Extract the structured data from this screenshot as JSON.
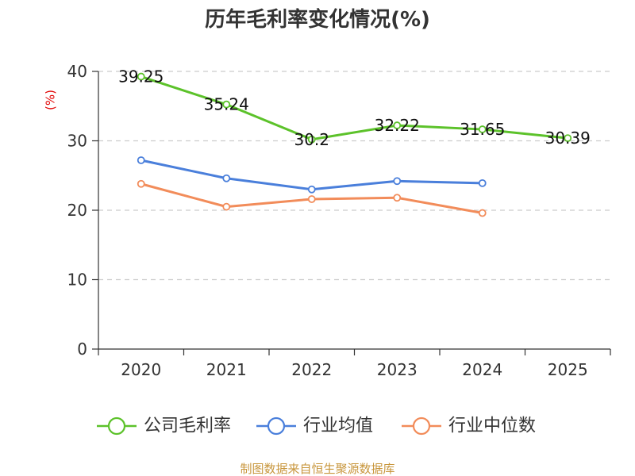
{
  "chart_data": {
    "type": "line",
    "title": "历年毛利率变化情况(%)",
    "ylabel": "(%)",
    "xlabel": "",
    "ylim": [
      0,
      40
    ],
    "yticks": [
      0,
      10,
      20,
      30,
      40
    ],
    "grid": true,
    "legend_position": "bottom",
    "categories": [
      "2020",
      "2021",
      "2022",
      "2023",
      "2024",
      "2025"
    ],
    "series": [
      {
        "name": "公司毛利率",
        "color": "#5cc22a",
        "values": [
          39.25,
          35.24,
          30.2,
          32.22,
          31.65,
          30.39
        ],
        "labels": [
          "39.25",
          "35.24",
          "30.2",
          "32.22",
          "31.65",
          "30.39"
        ]
      },
      {
        "name": "行业均值",
        "color": "#4a7fdb",
        "values": [
          27.2,
          24.6,
          23.0,
          24.2,
          23.9,
          null
        ]
      },
      {
        "name": "行业中位数",
        "color": "#f28c5a",
        "values": [
          23.8,
          20.5,
          21.6,
          21.8,
          19.6,
          null
        ]
      }
    ]
  },
  "source": {
    "text": "制图数据来自恒生聚源数据库",
    "color": "#c8963c"
  },
  "colors": {
    "axis": "#333333",
    "grid": "#cccccc",
    "ylabel": "#e00000"
  }
}
